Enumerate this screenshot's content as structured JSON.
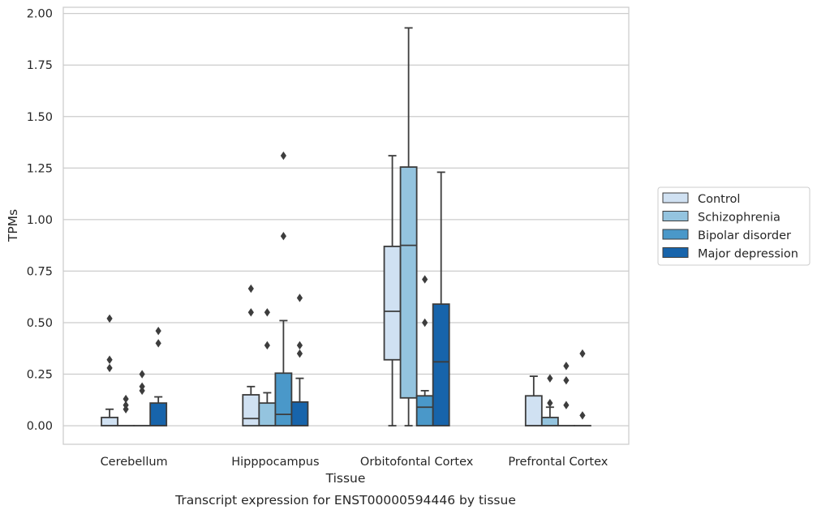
{
  "caption": "Transcript expression for ENST00000594446 by tissue",
  "chart_data": {
    "type": "box",
    "title": "",
    "xlabel": "Tissue",
    "ylabel": "TPMs",
    "ylim": [
      -0.09,
      2.03
    ],
    "yticks": [
      0.0,
      0.25,
      0.5,
      0.75,
      1.0,
      1.25,
      1.5,
      1.75,
      2.0
    ],
    "ytick_labels": [
      "0.00",
      "0.25",
      "0.50",
      "0.75",
      "1.00",
      "1.25",
      "1.50",
      "1.75",
      "2.00"
    ],
    "grid": "horizontal",
    "legend_position": "right",
    "categories": [
      "Cerebellum",
      "Hipppocampus",
      "Orbitofontal Cortex",
      "Prefrontal Cortex"
    ],
    "series": [
      {
        "name": "Control",
        "color": "#d0e1f2",
        "boxes": [
          {
            "q1": 0.0,
            "median": 0.0,
            "q3": 0.04,
            "whisker_low": 0.0,
            "whisker_high": 0.08,
            "outliers": [
              0.28,
              0.32,
              0.52
            ]
          },
          {
            "q1": 0.0,
            "median": 0.035,
            "q3": 0.15,
            "whisker_low": 0.0,
            "whisker_high": 0.19,
            "outliers": [
              0.55,
              0.665
            ]
          },
          {
            "q1": 0.32,
            "median": 0.555,
            "q3": 0.87,
            "whisker_low": 0.0,
            "whisker_high": 1.31,
            "outliers": []
          },
          {
            "q1": 0.0,
            "median": 0.0,
            "q3": 0.145,
            "whisker_low": 0.0,
            "whisker_high": 0.24,
            "outliers": []
          }
        ]
      },
      {
        "name": "Schizophrenia",
        "color": "#94c4df",
        "boxes": [
          {
            "q1": 0.0,
            "median": 0.0,
            "q3": 0.0,
            "whisker_low": 0.0,
            "whisker_high": 0.0,
            "outliers": [
              0.08,
              0.1,
              0.13
            ]
          },
          {
            "q1": 0.0,
            "median": 0.0,
            "q3": 0.11,
            "whisker_low": 0.0,
            "whisker_high": 0.16,
            "outliers": [
              0.39,
              0.55
            ]
          },
          {
            "q1": 0.135,
            "median": 0.875,
            "q3": 1.255,
            "whisker_low": 0.0,
            "whisker_high": 1.93,
            "outliers": []
          },
          {
            "q1": 0.0,
            "median": 0.0,
            "q3": 0.04,
            "whisker_low": 0.0,
            "whisker_high": 0.09,
            "outliers": [
              0.11,
              0.23
            ]
          }
        ]
      },
      {
        "name": "Bipolar disorder",
        "color": "#4a98c9",
        "boxes": [
          {
            "q1": 0.0,
            "median": 0.0,
            "q3": 0.0,
            "whisker_low": 0.0,
            "whisker_high": 0.0,
            "outliers": [
              0.17,
              0.19,
              0.25
            ]
          },
          {
            "q1": 0.0,
            "median": 0.055,
            "q3": 0.255,
            "whisker_low": 0.0,
            "whisker_high": 0.51,
            "outliers": [
              0.92,
              1.31
            ]
          },
          {
            "q1": 0.0,
            "median": 0.09,
            "q3": 0.145,
            "whisker_low": 0.0,
            "whisker_high": 0.17,
            "outliers": [
              0.5,
              0.71
            ]
          },
          {
            "q1": 0.0,
            "median": 0.0,
            "q3": 0.0,
            "whisker_low": 0.0,
            "whisker_high": 0.0,
            "outliers": [
              0.1,
              0.22,
              0.29
            ]
          }
        ]
      },
      {
        "name": "Major depression",
        "color": "#1764ab",
        "boxes": [
          {
            "q1": 0.0,
            "median": 0.0,
            "q3": 0.11,
            "whisker_low": 0.0,
            "whisker_high": 0.14,
            "outliers": [
              0.4,
              0.46
            ]
          },
          {
            "q1": 0.0,
            "median": 0.0,
            "q3": 0.115,
            "whisker_low": 0.0,
            "whisker_high": 0.23,
            "outliers": [
              0.35,
              0.39,
              0.62
            ]
          },
          {
            "q1": 0.0,
            "median": 0.31,
            "q3": 0.59,
            "whisker_low": 0.0,
            "whisker_high": 1.23,
            "outliers": []
          },
          {
            "q1": 0.0,
            "median": 0.0,
            "q3": 0.0,
            "whisker_low": 0.0,
            "whisker_high": 0.0,
            "outliers": [
              0.05,
              0.35
            ]
          }
        ]
      }
    ]
  }
}
